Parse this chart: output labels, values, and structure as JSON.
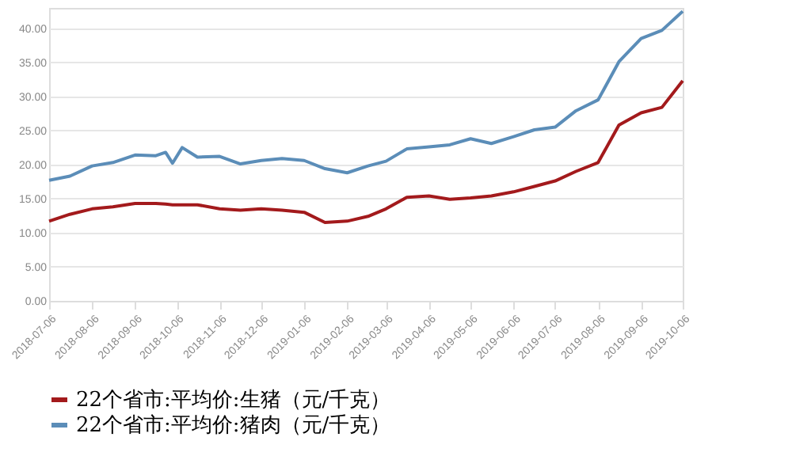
{
  "chart_data": {
    "type": "line",
    "x": [
      "2018-07-06",
      "2018-07-21",
      "2018-08-06",
      "2018-08-21",
      "2018-09-06",
      "2018-09-21",
      "2018-09-28",
      "2018-10-03",
      "2018-10-10",
      "2018-10-21",
      "2018-11-06",
      "2018-11-21",
      "2018-12-06",
      "2018-12-21",
      "2019-01-06",
      "2019-01-21",
      "2019-02-06",
      "2019-02-21",
      "2019-03-06",
      "2019-03-21",
      "2019-04-06",
      "2019-04-21",
      "2019-05-06",
      "2019-05-21",
      "2019-06-06",
      "2019-06-21",
      "2019-07-06",
      "2019-07-21",
      "2019-08-06",
      "2019-08-21",
      "2019-09-06",
      "2019-09-21",
      "2019-10-06"
    ],
    "series": [
      {
        "name": "22个省市:平均价:生猪（元/千克）",
        "color": "#a31a1c",
        "values": [
          11.7,
          12.7,
          13.5,
          13.8,
          14.3,
          14.3,
          14.2,
          14.1,
          14.1,
          14.1,
          13.5,
          13.3,
          13.5,
          13.3,
          13.0,
          11.5,
          11.7,
          12.4,
          13.5,
          15.2,
          15.4,
          14.9,
          15.1,
          15.4,
          16.0,
          16.8,
          17.6,
          19.0,
          20.3,
          25.8,
          27.6,
          28.4,
          32.3
        ]
      },
      {
        "name": "22个省市:平均价:猪肉（元/千克）",
        "color": "#5b8db8",
        "values": [
          17.7,
          18.3,
          19.8,
          20.3,
          21.4,
          21.3,
          21.8,
          20.2,
          22.5,
          21.1,
          21.2,
          20.1,
          20.6,
          20.9,
          20.6,
          19.4,
          18.8,
          19.8,
          20.5,
          22.3,
          22.6,
          22.9,
          23.8,
          23.1,
          24.1,
          25.1,
          25.5,
          27.9,
          29.5,
          35.1,
          38.5,
          39.7,
          42.5
        ]
      }
    ],
    "xlim": [
      "2018-07-06",
      "2019-10-06"
    ],
    "xticks": [
      "2018-07-06",
      "2018-08-06",
      "2018-09-06",
      "2018-10-06",
      "2018-11-06",
      "2018-12-06",
      "2019-01-06",
      "2019-02-06",
      "2019-03-06",
      "2019-04-06",
      "2019-05-06",
      "2019-06-06",
      "2019-07-06",
      "2019-08-06",
      "2019-09-06",
      "2019-10-06"
    ],
    "ylim": [
      0,
      43
    ],
    "yticks": [
      {
        "value": 0,
        "label": "0.00"
      },
      {
        "value": 5,
        "label": "5.00"
      },
      {
        "value": 10,
        "label": "10.00"
      },
      {
        "value": 15,
        "label": "15.00"
      },
      {
        "value": 20,
        "label": "20.00"
      },
      {
        "value": 25,
        "label": "25.00"
      },
      {
        "value": 30,
        "label": "30.00"
      },
      {
        "value": 35,
        "label": "35.00"
      },
      {
        "value": 40,
        "label": "40.00"
      }
    ],
    "grid": "y",
    "legend": "bottom",
    "marker": "none",
    "line_style": "solid"
  }
}
